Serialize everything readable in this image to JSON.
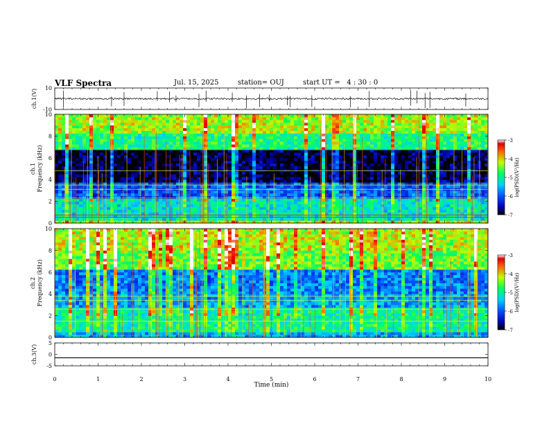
{
  "header": {
    "title": "VLF Spectra",
    "date": "Jul. 15, 2025",
    "station": "station= OUJ",
    "start": "start UT =   4 : 30 : 0"
  },
  "chart_data": [
    {
      "type": "line",
      "name": "ch1-waveform",
      "ylabel": "ch.1(V)",
      "ylim": [
        -10,
        10
      ],
      "yticks": [
        "10",
        "-10"
      ],
      "xlim": [
        0,
        10
      ],
      "baseline": 0,
      "note": "noisy waveform centred near 0 V with occasional impulsive spikes"
    },
    {
      "type": "heatmap",
      "name": "ch1-spectrogram",
      "ylabel": "ch.1 Frequency (kHz)",
      "ylim": [
        0,
        10
      ],
      "yticks": [
        "0",
        "2",
        "4",
        "6",
        "8",
        "10"
      ],
      "xlim": [
        0,
        10
      ],
      "colorbar": {
        "label": "log(PSD)(V²/Hz)",
        "range": [
          -7,
          -3
        ],
        "ticks": [
          "-3",
          "-4",
          "-5",
          "-6",
          "-7"
        ]
      }
    },
    {
      "type": "heatmap",
      "name": "ch2-spectrogram",
      "ylabel": "ch.2 Frequency (kHz)",
      "ylim": [
        0,
        10
      ],
      "yticks": [
        "0",
        "2",
        "4",
        "6",
        "8",
        "10"
      ],
      "xlim": [
        0,
        10
      ],
      "colorbar": {
        "label": "log(PSD)(V²/Hz)",
        "range": [
          -7,
          -3
        ],
        "ticks": [
          "-3",
          "-4",
          "-5",
          "-6",
          "-7"
        ]
      }
    },
    {
      "type": "line",
      "name": "ch3-waveform",
      "ylabel": "ch.3(V)",
      "ylim": [
        -5,
        5
      ],
      "yticks": [
        "5",
        "0",
        "-5"
      ],
      "xlim": [
        0,
        10
      ],
      "baseline": -1.5,
      "note": "flat line"
    }
  ],
  "xaxis": {
    "label": "Time (min)",
    "ticks": [
      "0",
      "1",
      "2",
      "3",
      "4",
      "5",
      "6",
      "7",
      "8",
      "9",
      "10"
    ]
  }
}
